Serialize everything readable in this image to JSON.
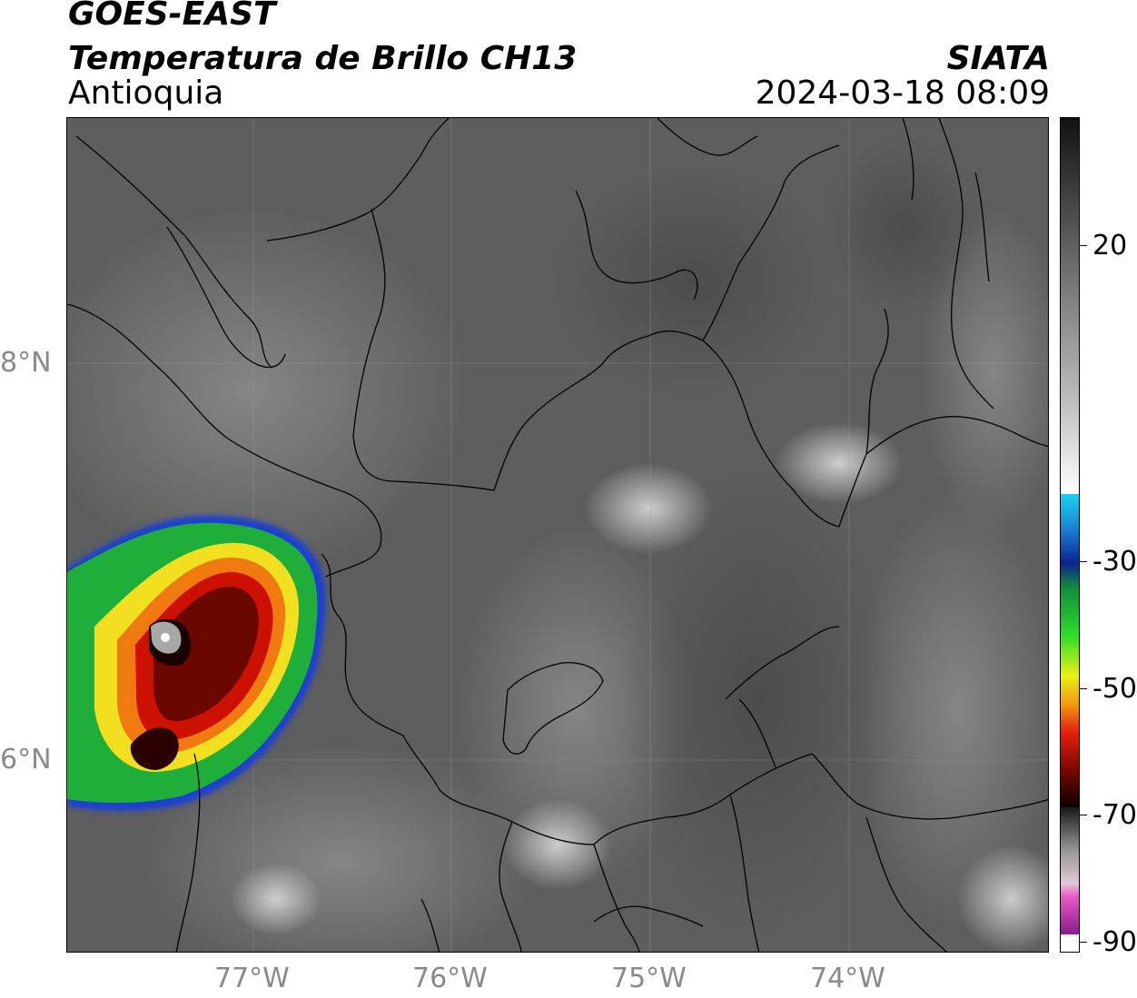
{
  "header": {
    "line1": "GOES-EAST",
    "line2": "Temperatura de Brillo CH13",
    "region": "Antioquia",
    "organization": "SIATA",
    "timestamp": "2024-03-18 08:09"
  },
  "map": {
    "lat_labels": [
      "8°N",
      "6°N"
    ],
    "lon_labels": [
      "77°W",
      "76°W",
      "75°W",
      "74°W"
    ]
  },
  "colorbar": {
    "tick_labels": [
      "20",
      "-30",
      "-50",
      "-70",
      "-90"
    ]
  },
  "colors": {
    "background_gray": "#5c5c5c",
    "border_line": "#000000",
    "storm_green": "#22cc22",
    "storm_red": "#cc1100",
    "storm_dark": "#3a0000"
  }
}
